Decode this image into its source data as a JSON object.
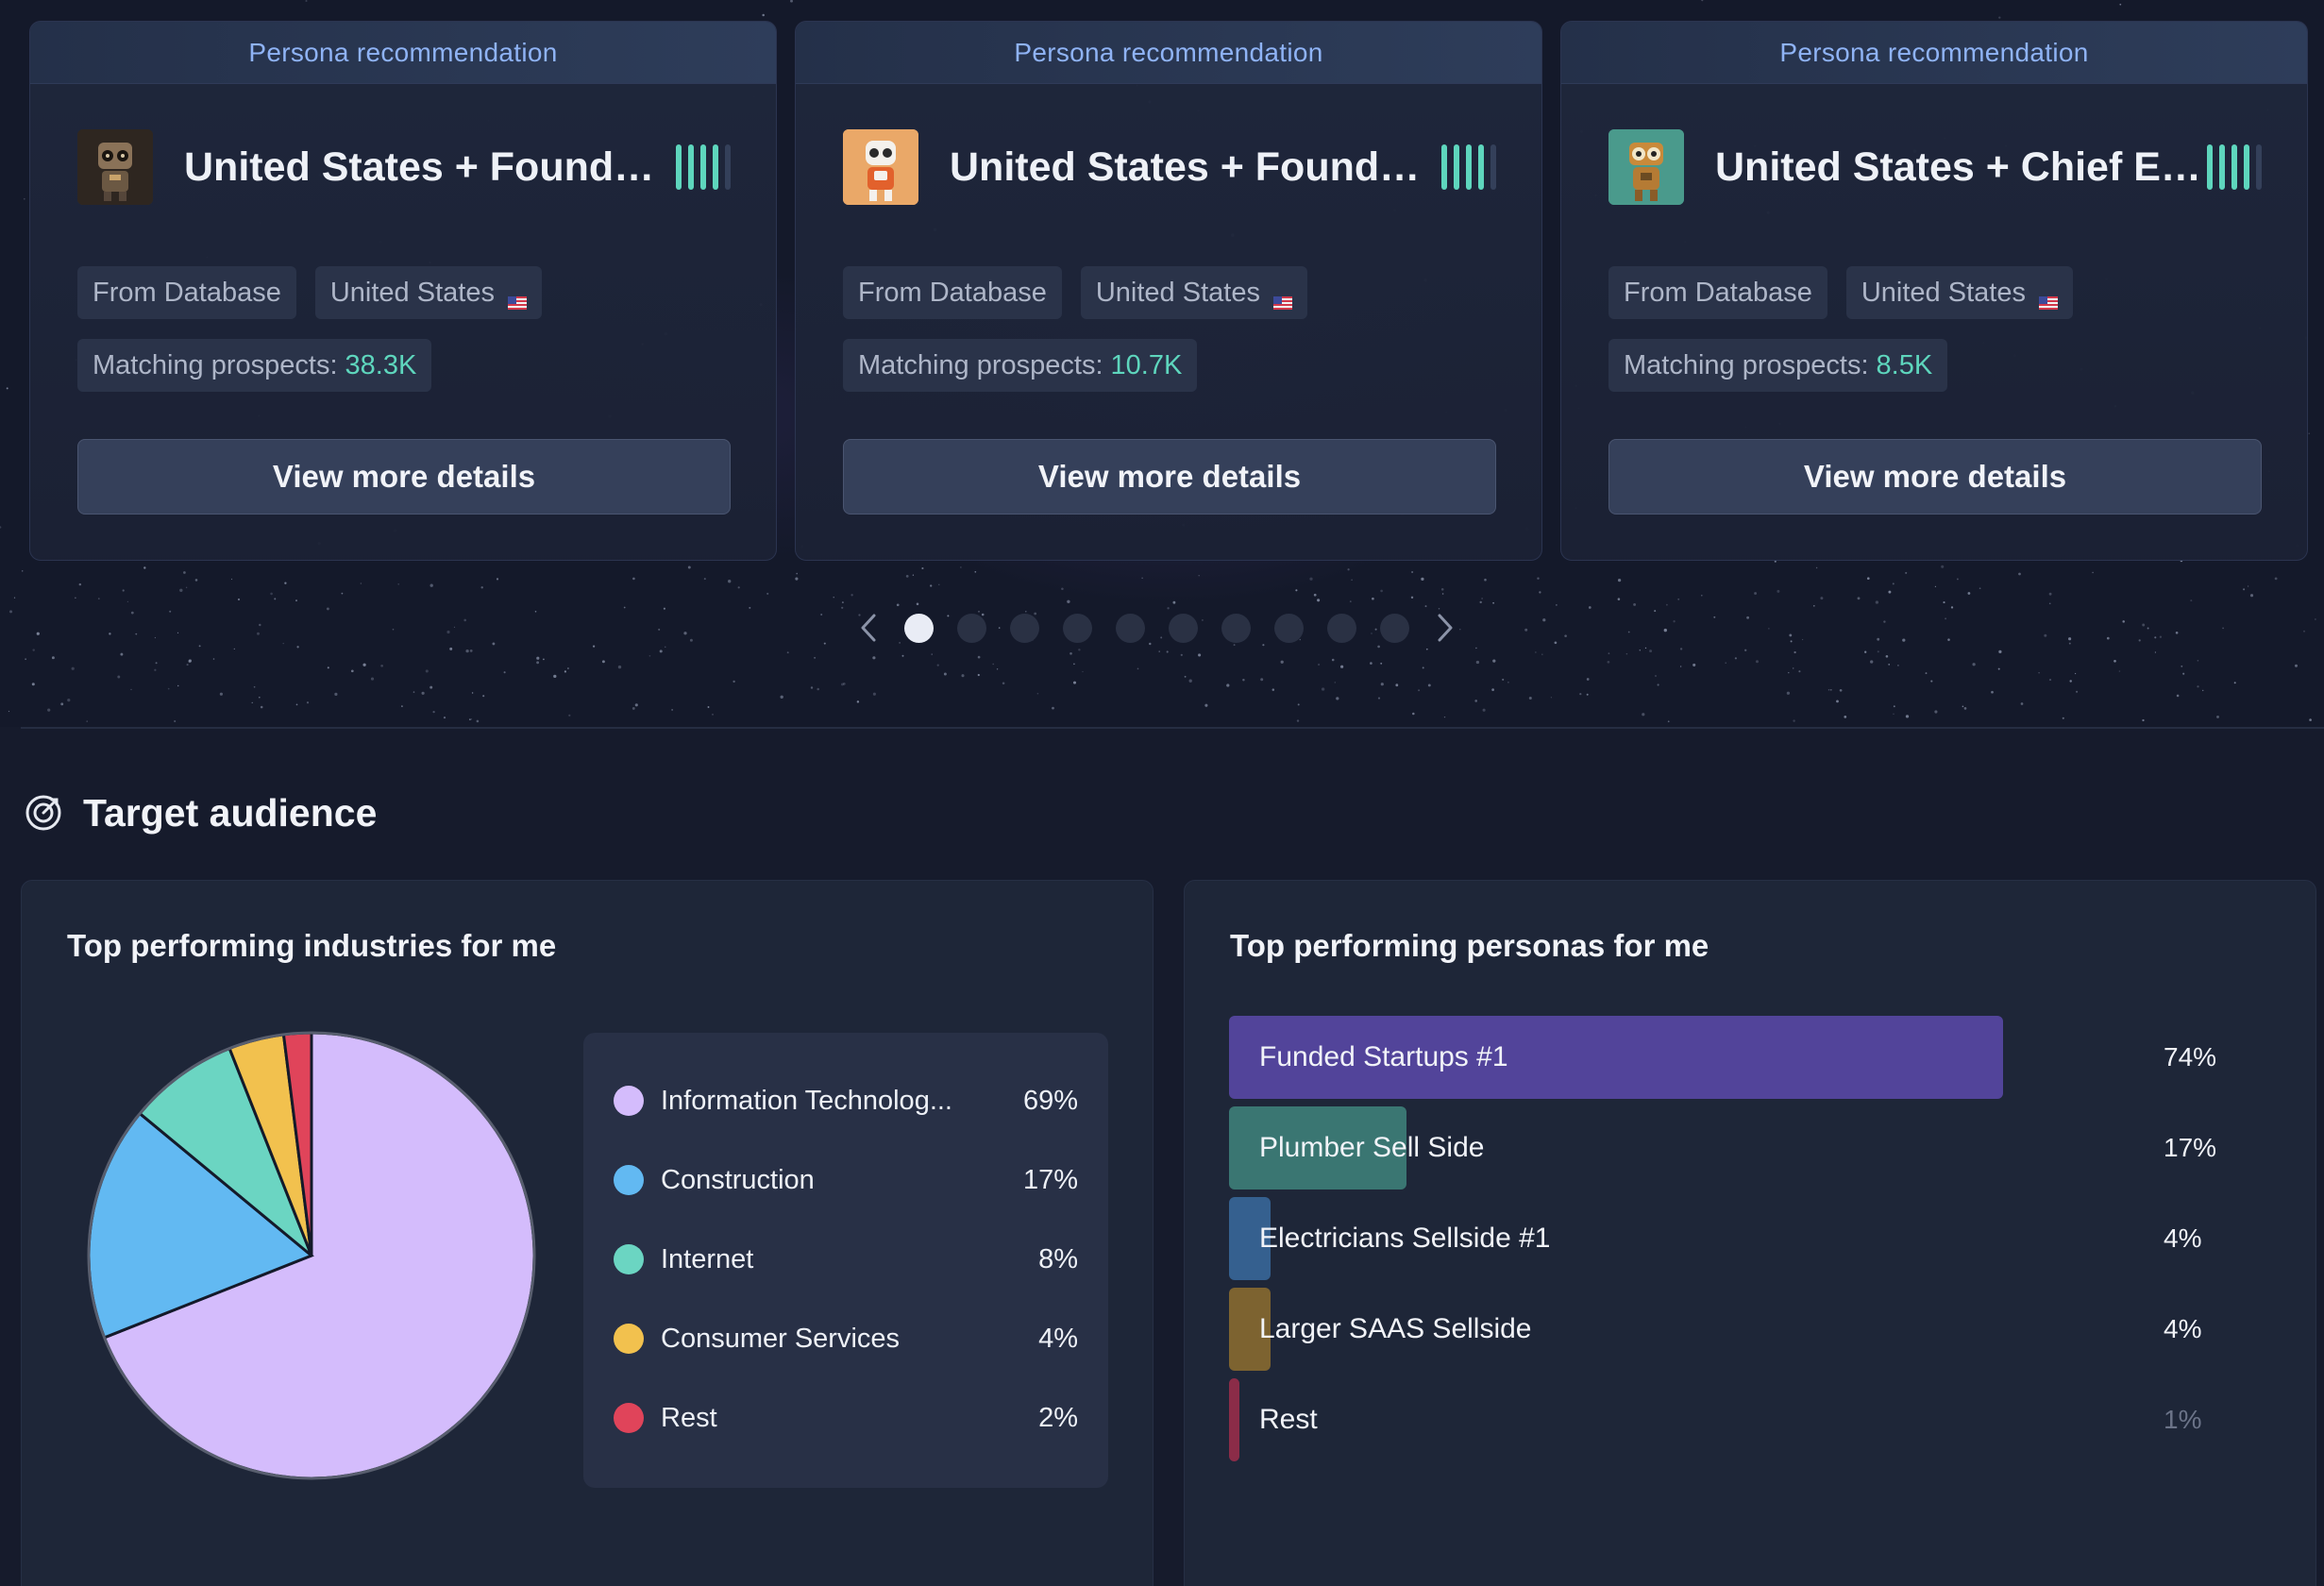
{
  "cards": [
    {
      "header": "Persona recommendation",
      "title": "United States + Founder...",
      "source_chip": "From Database",
      "country_chip": "United States",
      "prospects_label": "Matching prospects:",
      "prospects_value": "38.3K",
      "button": "View more details",
      "signal_strength": 4,
      "avatar_icon": "robot-brown-avatar"
    },
    {
      "header": "Persona recommendation",
      "title": "United States + Founder...",
      "source_chip": "From Database",
      "country_chip": "United States",
      "prospects_label": "Matching prospects:",
      "prospects_value": "10.7K",
      "button": "View more details",
      "signal_strength": 4,
      "avatar_icon": "robot-orange-avatar"
    },
    {
      "header": "Persona recommendation",
      "title": "United States + Chief Ex...",
      "source_chip": "From Database",
      "country_chip": "United States",
      "prospects_label": "Matching prospects:",
      "prospects_value": "8.5K",
      "button": "View more details",
      "signal_strength": 4,
      "avatar_icon": "robot-teal-avatar"
    }
  ],
  "carousel": {
    "page_count": 10,
    "active_index": 0,
    "prev_icon": "chevron-left-icon",
    "next_icon": "chevron-right-icon"
  },
  "section": {
    "title": "Target audience",
    "icon": "target-icon"
  },
  "industries": {
    "title": "Top performing industries for me",
    "items": [
      {
        "name": "Information Technolog...",
        "pct": "69%",
        "color": "#d4bcfc"
      },
      {
        "name": "Construction",
        "pct": "17%",
        "color": "#62b9f2"
      },
      {
        "name": "Internet",
        "pct": "8%",
        "color": "#6bd5c2"
      },
      {
        "name": "Consumer Services",
        "pct": "4%",
        "color": "#f2c14e"
      },
      {
        "name": "Rest",
        "pct": "2%",
        "color": "#e0445a"
      }
    ]
  },
  "personas": {
    "title": "Top performing personas for me",
    "items": [
      {
        "name": "Funded Startups #1",
        "pct": "74%",
        "color": "#52449a"
      },
      {
        "name": "Plumber Sell Side",
        "pct": "17%",
        "color": "#3a7672"
      },
      {
        "name": "Electricians Sellside #1",
        "pct": "4%",
        "color": "#35608f"
      },
      {
        "name": "Larger SAAS Sellside",
        "pct": "4%",
        "color": "#7d6330"
      },
      {
        "name": "Rest",
        "pct": "1%",
        "color": "#8b2c48"
      }
    ]
  },
  "chart_data": [
    {
      "type": "pie",
      "title": "Top performing industries for me",
      "categories": [
        "Information Technolog...",
        "Construction",
        "Internet",
        "Consumer Services",
        "Rest"
      ],
      "values": [
        69,
        17,
        8,
        4,
        2
      ]
    },
    {
      "type": "bar",
      "title": "Top performing personas for me",
      "categories": [
        "Funded Startups #1",
        "Plumber Sell Side",
        "Electricians Sellside #1",
        "Larger SAAS Sellside",
        "Rest"
      ],
      "values": [
        74,
        17,
        4,
        4,
        1
      ]
    }
  ]
}
